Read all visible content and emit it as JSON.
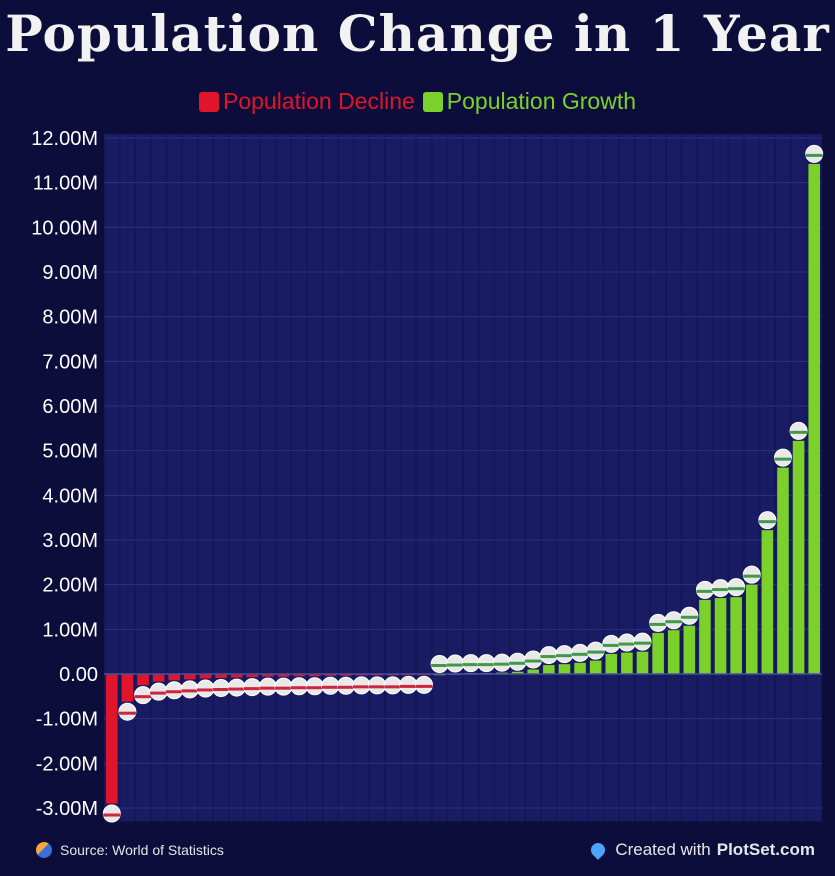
{
  "chart_data": {
    "type": "bar",
    "title": "Population Change in 1 Year",
    "legend": [
      {
        "label": "Population Decline",
        "color": "#e0142b"
      },
      {
        "label": "Population Growth",
        "color": "#7bd12a"
      }
    ],
    "ylim": [
      -3.3,
      12.0
    ],
    "yticks": [
      12,
      11,
      10,
      9,
      8,
      7,
      6,
      5,
      4,
      3,
      2,
      1,
      0,
      -1,
      -2,
      -3
    ],
    "ytick_labels": [
      "12.00M",
      "11.00M",
      "10.00M",
      "9.00M",
      "8.00M",
      "7.00M",
      "6.00M",
      "5.00M",
      "4.00M",
      "3.00M",
      "2.00M",
      "1.00M",
      "0.00",
      "-1.00M",
      "-2.00M",
      "-3.00M"
    ],
    "grid": true,
    "values": [
      -2.9,
      -0.62,
      -0.25,
      -0.17,
      -0.14,
      -0.12,
      -0.1,
      -0.09,
      -0.08,
      -0.07,
      -0.06,
      -0.06,
      -0.05,
      -0.05,
      -0.04,
      -0.04,
      -0.03,
      -0.03,
      -0.03,
      -0.02,
      -0.02,
      0.0,
      0.01,
      0.02,
      0.02,
      0.03,
      0.05,
      0.1,
      0.2,
      0.22,
      0.25,
      0.3,
      0.45,
      0.48,
      0.5,
      0.92,
      0.98,
      1.08,
      1.66,
      1.7,
      1.72,
      2.0,
      3.22,
      4.62,
      5.22,
      11.42
    ],
    "positive_color": "#7bd12a",
    "negative_color": "#e0142b"
  },
  "footer": {
    "source": "Source: World of Statistics",
    "created_prefix": "Created with",
    "brand": "PlotSet.com"
  }
}
